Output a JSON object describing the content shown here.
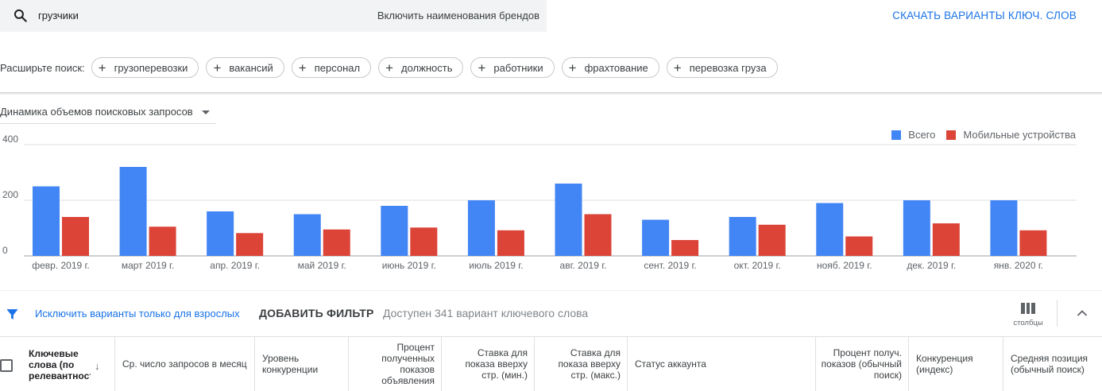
{
  "search": {
    "query": "грузчики",
    "brands_toggle": "Включить наименования брендов"
  },
  "download_label": "СКАЧАТЬ ВАРИАНТЫ КЛЮЧ. СЛОВ",
  "expand": {
    "label": "Расширьте поиск:",
    "chips": [
      "грузоперевозки",
      "вакансий",
      "персонал",
      "должность",
      "работники",
      "фрахтование",
      "перевозка груза"
    ]
  },
  "chart_panel": {
    "metric_selector": "Динамика объемов поисковых запросов"
  },
  "colors": {
    "total": "#4285f4",
    "mobile": "#db4437",
    "accent": "#1a73e8"
  },
  "chart_data": {
    "type": "bar",
    "categories": [
      "февр. 2019 г.",
      "март 2019 г.",
      "апр. 2019 г.",
      "май 2019 г.",
      "июнь 2019 г.",
      "июль 2019 г.",
      "авг. 2019 г.",
      "сент. 2019 г.",
      "окт. 2019 г.",
      "нояб. 2019 г.",
      "дек. 2019 г.",
      "янв. 2020 г."
    ],
    "series": [
      {
        "name": "Всего",
        "values": [
          250,
          320,
          160,
          150,
          180,
          200,
          260,
          130,
          140,
          190,
          200,
          200
        ]
      },
      {
        "name": "Мобильные устройства",
        "values": [
          140,
          105,
          82,
          95,
          102,
          92,
          150,
          57,
          112,
          70,
          117,
          92
        ]
      }
    ],
    "yticks": [
      "0",
      "200",
      "400"
    ],
    "ylim": [
      0,
      400
    ],
    "grid": true,
    "legend": "top-right"
  },
  "toolbar": {
    "exclude_adult": "Исключить варианты только для взрослых",
    "add_filter": "ДОБАВИТЬ ФИЛЬТР",
    "available": "Доступен 341 вариант ключевого слова",
    "columns_label": "столбцы"
  },
  "table": {
    "keyword_header": "Ключевые слова (по релевантности)",
    "columns": [
      "Ср. число запросов в месяц",
      "Уровень конкуренции",
      "Процент полученных показов объявления",
      "Ставка для показа вверху стр. (мин.)",
      "Ставка для показа вверху стр. (макс.)",
      "Статус аккаунта",
      "Процент получ. показов (обычный поиск)",
      "Конкуренция (индекс)",
      "Средняя позиция (обычный поиск)"
    ]
  }
}
